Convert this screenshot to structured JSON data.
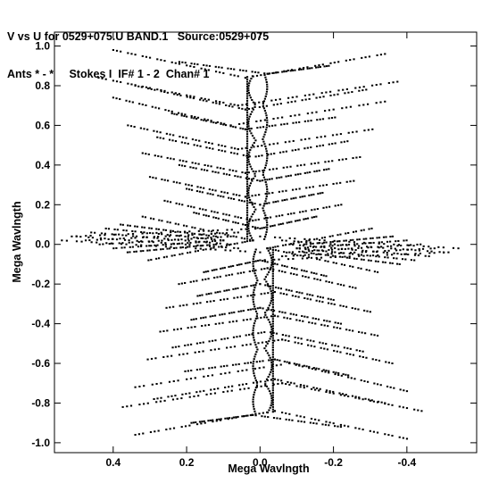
{
  "header": {
    "line1": "V vs U for 0529+075.U BAND.1   Source:0529+075",
    "line2": "Ants * - *     Stokes I  IF# 1 - 2  Chan# 1"
  },
  "chart_data": {
    "type": "scatter",
    "xlabel": "Mega Wavlngth",
    "ylabel": "Mega Wavlngth",
    "xlim": [
      0.56,
      -0.59
    ],
    "ylim": [
      -1.05,
      1.07
    ],
    "x_reversed": true,
    "xticks": [
      0.4,
      0.2,
      0.0,
      -0.2,
      -0.4
    ],
    "xtick_labels": [
      "0.4",
      "0.2",
      "0.0",
      "-0.2",
      "-0.4"
    ],
    "yticks": [
      1.0,
      0.8,
      0.6,
      0.4,
      0.2,
      0.0,
      -0.2,
      -0.4,
      -0.6,
      -0.8,
      -1.0
    ],
    "ytick_labels": [
      "1.0",
      "0.8",
      "0.6",
      "0.4",
      "0.2",
      "0.0",
      "-0.2",
      "-0.4",
      "-0.6",
      "-0.8",
      "-1.0"
    ],
    "grid": false,
    "point_color": "#000000",
    "series": [
      {
        "description_structure": "uv-coverage tracks (chevron arcs), point symmetric about origin",
        "tracks_upper": [
          {
            "v": 0.98,
            "u_outer": 0.4,
            "u_dip": 0.04,
            "v_dip": 0.84
          },
          {
            "v": 0.92,
            "u_outer": 0.22,
            "u_dip": -0.02,
            "v_dip": 0.86
          },
          {
            "v": 0.84,
            "u_outer": 0.44,
            "u_dip": 0.06,
            "v_dip": 0.7
          },
          {
            "v": 0.8,
            "u_outer": 0.34,
            "u_dip": 0.04,
            "v_dip": 0.68
          },
          {
            "v": 0.74,
            "u_outer": 0.4,
            "u_dip": 0.08,
            "v_dip": 0.6
          },
          {
            "v": 0.66,
            "u_outer": 0.24,
            "u_dip": 0.04,
            "v_dip": 0.58
          },
          {
            "v": 0.6,
            "u_outer": 0.36,
            "u_dip": 0.06,
            "v_dip": 0.48
          },
          {
            "v": 0.54,
            "u_outer": 0.28,
            "u_dip": 0.02,
            "v_dip": 0.44
          },
          {
            "v": 0.46,
            "u_outer": 0.32,
            "u_dip": 0.04,
            "v_dip": 0.36
          },
          {
            "v": 0.4,
            "u_outer": 0.22,
            "u_dip": 0.0,
            "v_dip": 0.32
          },
          {
            "v": 0.34,
            "u_outer": 0.3,
            "u_dip": 0.04,
            "v_dip": 0.24
          },
          {
            "v": 0.28,
            "u_outer": 0.2,
            "u_dip": 0.0,
            "v_dip": 0.2
          },
          {
            "v": 0.22,
            "u_outer": 0.26,
            "u_dip": 0.02,
            "v_dip": 0.12
          },
          {
            "v": 0.16,
            "u_outer": 0.18,
            "u_dip": 0.0,
            "v_dip": 0.08
          }
        ],
        "tracks_near_horizontal": [
          {
            "u_start": 0.54,
            "v_start": 0.02,
            "u_end": 0.0,
            "v_end": -0.04
          },
          {
            "u_start": 0.5,
            "v_start": 0.04,
            "u_end": 0.06,
            "v_end": -0.02
          },
          {
            "u_start": 0.46,
            "v_start": 0.06,
            "u_end": 0.08,
            "v_end": 0.0
          },
          {
            "u_start": 0.42,
            "v_start": 0.08,
            "u_end": 0.1,
            "v_end": 0.02
          },
          {
            "u_start": 0.38,
            "v_start": 0.1,
            "u_end": 0.12,
            "v_end": 0.04
          },
          {
            "u_start": 0.32,
            "v_start": 0.14,
            "u_end": 0.02,
            "v_end": 0.02
          }
        ]
      }
    ]
  }
}
